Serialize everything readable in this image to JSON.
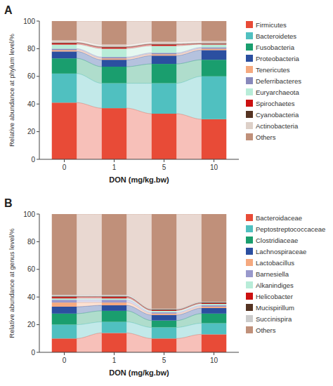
{
  "chart_data": [
    {
      "type": "bar",
      "stacked": true,
      "title": "A",
      "ylabel": "Relative abundance at phylum level/%",
      "xlabel": "DON  (mg/kg.bw)",
      "categories": [
        "0",
        "1",
        "5",
        "10"
      ],
      "series": [
        {
          "name": "Firmicutes",
          "color": "#E84B37",
          "values": [
            41,
            37,
            33,
            29
          ]
        },
        {
          "name": "Bacteroidetes",
          "color": "#50C0C0",
          "values": [
            21,
            18,
            22,
            31
          ]
        },
        {
          "name": "Fusobacteria",
          "color": "#1A9E6E",
          "values": [
            11,
            12,
            14,
            12
          ]
        },
        {
          "name": "Proteobacteria",
          "color": "#2B4FA0",
          "values": [
            5,
            5,
            6,
            7
          ]
        },
        {
          "name": "Tenericutes",
          "color": "#F5A97F",
          "values": [
            1,
            1,
            1,
            1
          ]
        },
        {
          "name": "Deferribacteres",
          "color": "#8888BB",
          "values": [
            1,
            1,
            1,
            1
          ]
        },
        {
          "name": "Euryarchaeota",
          "color": "#B8ECD8",
          "values": [
            3,
            6,
            5,
            2
          ]
        },
        {
          "name": "Spirochaetes",
          "color": "#CC1111",
          "values": [
            1,
            1,
            1,
            0.5
          ]
        },
        {
          "name": "Cyanobacteria",
          "color": "#553322",
          "values": [
            0.5,
            0.5,
            0.5,
            0.5
          ]
        },
        {
          "name": "Actinobacteria",
          "color": "#DDD0C8",
          "values": [
            1.5,
            1.5,
            1.5,
            1.5
          ]
        },
        {
          "name": "Others",
          "color": "#C0907A",
          "values": [
            14,
            17,
            15,
            14.5
          ]
        }
      ],
      "ylim": [
        0,
        100
      ],
      "yticks": [
        0,
        20,
        40,
        60,
        80,
        100
      ],
      "grid": false,
      "legend": "right"
    },
    {
      "type": "bar",
      "stacked": true,
      "title": "B",
      "ylabel": "Relative abundance at genus level/%",
      "xlabel": "DON  (mg/kg.bw)",
      "categories": [
        "0",
        "1",
        "5",
        "10"
      ],
      "series": [
        {
          "name": "Bacteroidaceae",
          "color": "#E84B37",
          "values": [
            10,
            14,
            10,
            13
          ]
        },
        {
          "name": "Peptostreptococcaceae",
          "color": "#50C0C0",
          "values": [
            10,
            8,
            8,
            8
          ]
        },
        {
          "name": "Clostridiaceae",
          "color": "#1A9E6E",
          "values": [
            8,
            8,
            5,
            7
          ]
        },
        {
          "name": "Lachnospiraceae",
          "color": "#2B4FA0",
          "values": [
            5,
            4,
            4,
            4
          ]
        },
        {
          "name": "Lactobacillus",
          "color": "#F5A97F",
          "values": [
            3,
            2,
            1,
            1
          ]
        },
        {
          "name": "Barnesiella",
          "color": "#9999CC",
          "values": [
            2,
            2,
            1,
            1
          ]
        },
        {
          "name": "Alkanindiges",
          "color": "#B8ECD8",
          "values": [
            1,
            1,
            1,
            1
          ]
        },
        {
          "name": "Helicobacter",
          "color": "#CC1111",
          "values": [
            1,
            1,
            0.5,
            0.5
          ]
        },
        {
          "name": "Mucispirillum",
          "color": "#553322",
          "values": [
            0.5,
            0.5,
            0.5,
            0.5
          ]
        },
        {
          "name": "Succinispira",
          "color": "#CCCCCC",
          "values": [
            1,
            1,
            0.5,
            0.5
          ]
        },
        {
          "name": "Others",
          "color": "#C0907A",
          "values": [
            58.5,
            58.5,
            68.5,
            63.5
          ]
        }
      ],
      "ylim": [
        0,
        100
      ],
      "yticks": [
        0,
        20,
        40,
        60,
        80,
        100
      ],
      "grid": false,
      "legend": "right"
    }
  ]
}
